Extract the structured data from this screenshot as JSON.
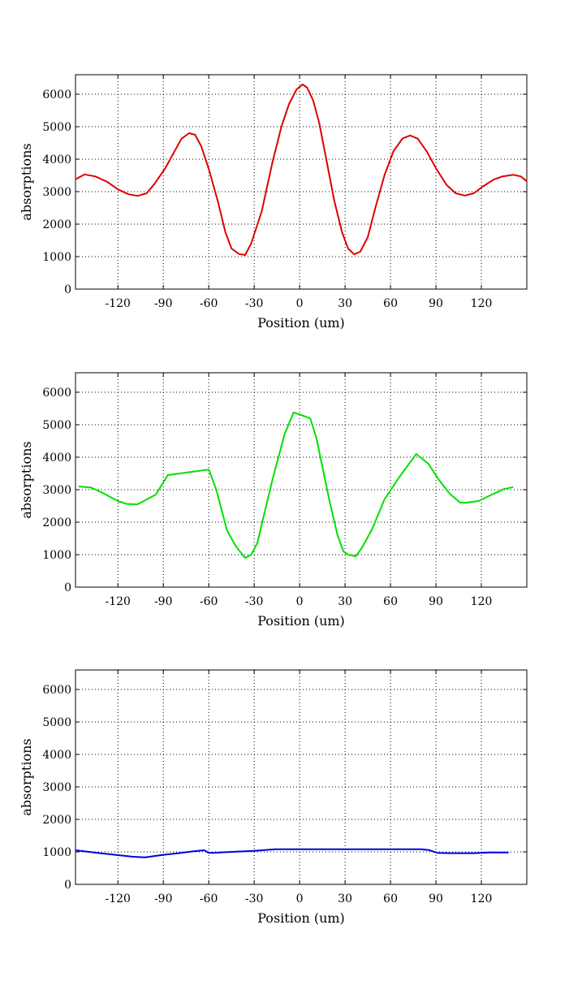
{
  "chart_data": [
    {
      "type": "line",
      "title": "",
      "xlabel": "Position (um)",
      "ylabel": "absorptions",
      "xlim": [
        -148,
        150
      ],
      "ylim": [
        0,
        6600
      ],
      "xticks": [
        -120,
        -90,
        -60,
        -30,
        0,
        30,
        60,
        90,
        120
      ],
      "yticks": [
        0,
        1000,
        2000,
        3000,
        4000,
        5000,
        6000
      ],
      "grid": true,
      "color": "#e00000",
      "series": [
        {
          "x": [
            -148,
            -142,
            -135,
            -127,
            -120,
            -113,
            -107,
            -101,
            -96,
            -89,
            -83,
            -78,
            -73,
            -69,
            -65,
            -60,
            -54,
            -49,
            -45,
            -40,
            -36,
            -32,
            -25,
            -18,
            -12,
            -7,
            -2,
            2,
            5,
            9,
            13,
            18,
            23,
            28,
            32,
            36,
            40,
            45,
            50,
            56,
            62,
            68,
            73,
            78,
            84,
            90,
            97,
            103,
            109,
            115,
            121,
            128,
            134,
            141,
            146,
            150
          ],
          "y": [
            3380,
            3530,
            3470,
            3300,
            3070,
            2920,
            2870,
            2950,
            3230,
            3700,
            4210,
            4630,
            4800,
            4750,
            4400,
            3700,
            2700,
            1750,
            1250,
            1080,
            1050,
            1400,
            2400,
            3900,
            5000,
            5700,
            6150,
            6300,
            6200,
            5800,
            5100,
            3900,
            2700,
            1750,
            1250,
            1070,
            1150,
            1600,
            2500,
            3500,
            4250,
            4640,
            4730,
            4630,
            4230,
            3720,
            3210,
            2950,
            2880,
            2950,
            3160,
            3370,
            3470,
            3520,
            3470,
            3320
          ]
        }
      ]
    },
    {
      "type": "line",
      "title": "",
      "xlabel": "Position (um)",
      "ylabel": "absorptions",
      "xlim": [
        -148,
        150
      ],
      "ylim": [
        0,
        6600
      ],
      "xticks": [
        -120,
        -90,
        -60,
        -30,
        0,
        30,
        60,
        90,
        120
      ],
      "yticks": [
        0,
        1000,
        2000,
        3000,
        4000,
        5000,
        6000
      ],
      "grid": true,
      "color": "#00e000",
      "series": [
        {
          "x": [
            -146,
            -138,
            -130,
            -120,
            -114,
            -107,
            -101,
            -95,
            -87,
            -60,
            -55,
            -48,
            -42,
            -36,
            -32,
            -28,
            -18,
            -10,
            -4,
            7,
            11,
            20,
            25,
            29,
            32,
            37,
            41,
            48,
            56,
            66,
            77,
            85,
            92,
            99,
            106,
            110,
            118,
            127,
            135,
            141
          ],
          "y": [
            3100,
            3070,
            2900,
            2650,
            2560,
            2550,
            2700,
            2850,
            3450,
            3620,
            3000,
            1750,
            1250,
            900,
            1000,
            1350,
            3300,
            4700,
            5380,
            5200,
            4600,
            2600,
            1600,
            1100,
            1000,
            950,
            1200,
            1800,
            2700,
            3400,
            4100,
            3800,
            3300,
            2880,
            2600,
            2600,
            2650,
            2850,
            3020,
            3080
          ]
        }
      ]
    },
    {
      "type": "line",
      "title": "",
      "xlabel": "Position (um)",
      "ylabel": "absorptions",
      "xlim": [
        -148,
        150
      ],
      "ylim": [
        0,
        6600
      ],
      "xticks": [
        -120,
        -90,
        -60,
        -30,
        0,
        30,
        60,
        90,
        120
      ],
      "yticks": [
        0,
        1000,
        2000,
        3000,
        4000,
        5000,
        6000
      ],
      "grid": true,
      "color": "#0000e0",
      "series": [
        {
          "x": [
            -148,
            -130,
            -110,
            -102,
            -90,
            -80,
            -70,
            -63,
            -60,
            -58,
            -45,
            -30,
            -16,
            0,
            30,
            60,
            80,
            85,
            91,
            100,
            115,
            125,
            138
          ],
          "y": [
            1050,
            950,
            850,
            830,
            910,
            960,
            1020,
            1050,
            970,
            970,
            1000,
            1030,
            1080,
            1080,
            1080,
            1080,
            1080,
            1060,
            970,
            960,
            960,
            980,
            980
          ]
        }
      ]
    }
  ]
}
